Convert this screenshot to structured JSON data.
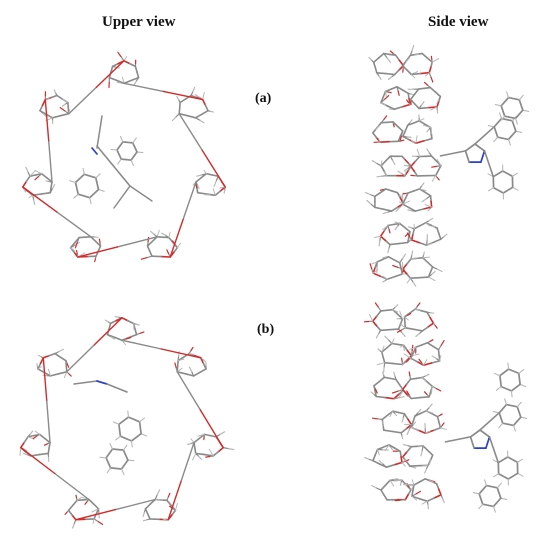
{
  "headers": {
    "upper": "Upper view",
    "side": "Side view"
  },
  "labels": {
    "a": "(a)",
    "b": "(b)"
  },
  "colors": {
    "carbon": "#8a8a8a",
    "hydrogen": "#b8b8b8",
    "oxygen": "#d42a2a",
    "nitrogen": "#2a3fd0"
  }
}
